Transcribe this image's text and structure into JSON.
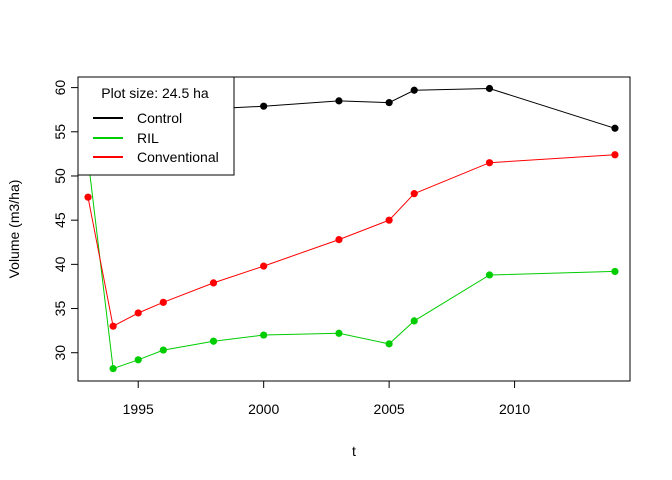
{
  "chart_data": {
    "type": "line",
    "xlabel": "t",
    "ylabel": "Volume (m3/ha)",
    "xlim": [
      1992.6,
      2014.6
    ],
    "ylim": [
      26.8,
      61.2
    ],
    "x_ticks": [
      1995,
      2000,
      2005,
      2010
    ],
    "y_ticks": [
      30,
      35,
      40,
      45,
      50,
      55,
      60
    ],
    "grid": false,
    "legend": {
      "position": "top-left",
      "title": "Plot size: 24.5 ha",
      "entries": [
        "Control",
        "RIL",
        "Conventional"
      ]
    },
    "series": [
      {
        "name": "Control",
        "color": "#000000",
        "x": [
          1993,
          1994,
          1995,
          1996,
          1998,
          2000,
          2003,
          2005,
          2006,
          2009,
          2014
        ],
        "y": [
          55.8,
          57.0,
          57.3,
          57.5,
          57.6,
          57.9,
          58.5,
          58.3,
          59.7,
          59.9,
          55.4
        ]
      },
      {
        "name": "RIL",
        "color": "#00cd00",
        "x": [
          1993,
          1994,
          1995,
          1996,
          1998,
          2000,
          2003,
          2005,
          2006,
          2009,
          2014
        ],
        "y": [
          52.0,
          28.2,
          29.2,
          30.3,
          31.3,
          32.0,
          32.2,
          31.0,
          33.6,
          38.8,
          39.2
        ]
      },
      {
        "name": "Conventional",
        "color": "#ff0000",
        "x": [
          1993,
          1994,
          1995,
          1996,
          1998,
          2000,
          2003,
          2005,
          2006,
          2009,
          2014
        ],
        "y": [
          47.6,
          33.0,
          34.5,
          35.7,
          37.9,
          39.8,
          42.8,
          45.0,
          48.0,
          51.5,
          52.4
        ]
      }
    ]
  }
}
